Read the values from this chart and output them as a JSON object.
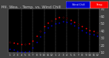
{
  "title": "Mil. Wea. - Temp. vs. Wind Chill",
  "title_fontsize": 4.0,
  "plot_bg_color": "#000000",
  "fig_bg_color": "#404040",
  "spine_color": "#888888",
  "grid_color": "#888888",
  "ylim": [
    10,
    70
  ],
  "xlim": [
    -0.5,
    23.5
  ],
  "yticks": [
    10,
    20,
    30,
    40,
    50,
    60,
    70
  ],
  "ytick_labels": [
    "10",
    "20",
    "30",
    "40",
    "50",
    "60",
    "70"
  ],
  "ytick_fontsize": 3.5,
  "xtick_fontsize": 3.0,
  "xticks": [
    0,
    1,
    2,
    3,
    4,
    5,
    6,
    7,
    8,
    9,
    10,
    11,
    12,
    13,
    14,
    15,
    16,
    17,
    18,
    19,
    20,
    21,
    22,
    23
  ],
  "xtick_labels": [
    "1",
    "2",
    "3",
    "4",
    "5",
    "6",
    "7",
    "8",
    "9",
    "10",
    "11",
    "12",
    "1",
    "2",
    "3",
    "4",
    "5",
    "6",
    "7",
    "8",
    "9",
    "10",
    "11",
    "12"
  ],
  "temp_x": [
    0,
    1,
    2,
    3,
    4,
    5,
    6,
    7,
    8,
    9,
    10,
    11,
    12,
    13,
    14,
    15,
    16,
    17,
    18,
    19,
    20,
    21,
    22,
    23
  ],
  "temp_y": [
    24,
    23,
    22,
    21,
    21,
    22,
    26,
    33,
    40,
    46,
    51,
    54,
    57,
    59,
    59,
    58,
    55,
    52,
    49,
    46,
    43,
    41,
    40,
    38
  ],
  "wind_x": [
    0,
    1,
    2,
    3,
    4,
    5,
    6,
    7,
    8,
    9,
    10,
    11,
    12,
    13,
    14,
    15,
    16,
    17,
    18,
    19,
    20,
    21,
    22,
    23
  ],
  "wind_y": [
    15,
    14,
    12,
    11,
    11,
    12,
    17,
    24,
    32,
    38,
    44,
    47,
    50,
    51,
    53,
    52,
    50,
    47,
    44,
    41,
    38,
    36,
    35,
    33
  ],
  "black_x": [
    0,
    4,
    8,
    11,
    14,
    15,
    18,
    23
  ],
  "black_y": [
    24,
    21,
    40,
    54,
    59,
    58,
    49,
    38
  ],
  "temp_color": "#ff0000",
  "wind_color": "#0000cc",
  "black_color": "#000000",
  "dot_size": 2.0,
  "black_dot_size": 2.0,
  "vgrid_positions": [
    3,
    6,
    9,
    12,
    15,
    18,
    21
  ],
  "legend_wind_label": "Wind Chill",
  "legend_temp_label": "Temp.",
  "legend_color_wind": "#0000cc",
  "legend_color_temp": "#ff0000",
  "tick_color": "#cccccc",
  "title_color": "#cccccc"
}
